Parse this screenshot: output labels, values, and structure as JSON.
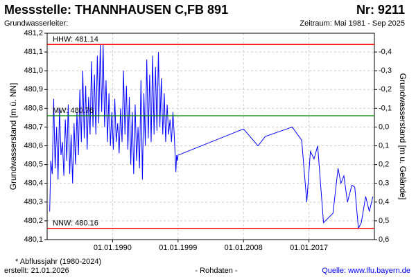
{
  "chart_data": {
    "type": "line",
    "title": "Messstelle: THANNHAUSEN C,FB 891",
    "number": "Nr: 9211",
    "subtitle_left": "Grundwasserleiter:",
    "subtitle_right": "Zeitraum: Mai 1981 - Sep 2025",
    "ylabel": "Grundwasserstand [m ü. NN]",
    "y2label": "Grundwasserstand [m u. Gelände]",
    "footnote": "* Abflussjahr (1980-2024)",
    "created": "erstellt:  21.01.2026",
    "rawdata": "- Rohdaten -",
    "source": "Quelle: www.lfu.bayern.de",
    "grid": true,
    "xlim": [
      1981,
      2026
    ],
    "xticks": [
      {
        "value": 1990,
        "label": "01.01.1990"
      },
      {
        "value": 1999,
        "label": "01.01.1999"
      },
      {
        "value": 2008,
        "label": "01.01.2008"
      },
      {
        "value": 2017,
        "label": "01.01.2017"
      }
    ],
    "ylim": [
      480.1,
      481.2
    ],
    "yticks": [
      {
        "value": 480.1,
        "label": "480,1"
      },
      {
        "value": 480.2,
        "label": "480,2"
      },
      {
        "value": 480.3,
        "label": "480,3"
      },
      {
        "value": 480.4,
        "label": "480,4"
      },
      {
        "value": 480.5,
        "label": "480,5"
      },
      {
        "value": 480.6,
        "label": "480,6"
      },
      {
        "value": 480.7,
        "label": "480,7"
      },
      {
        "value": 480.8,
        "label": "480,8"
      },
      {
        "value": 480.9,
        "label": "480,9"
      },
      {
        "value": 481.0,
        "label": "481,0"
      },
      {
        "value": 481.1,
        "label": "481,1"
      },
      {
        "value": 481.2,
        "label": "481,2"
      }
    ],
    "y2lim": [
      0.6,
      -0.5
    ],
    "y2ticks": [
      {
        "value": -0.4,
        "label": "-0,4"
      },
      {
        "value": -0.3,
        "label": "-0,3"
      },
      {
        "value": -0.2,
        "label": "-0,2"
      },
      {
        "value": -0.1,
        "label": "-0,1"
      },
      {
        "value": 0.0,
        "label": "0,0"
      },
      {
        "value": 0.1,
        "label": "0,1"
      },
      {
        "value": 0.2,
        "label": "0,2"
      },
      {
        "value": 0.3,
        "label": "0,3"
      },
      {
        "value": 0.4,
        "label": "0,4"
      },
      {
        "value": 0.5,
        "label": "0,5"
      },
      {
        "value": 0.6,
        "label": "0,6"
      }
    ],
    "reference_lines": [
      {
        "label": "HHW: 481.14",
        "value": 481.14,
        "color": "#ff0000"
      },
      {
        "label": "MW: 480.76",
        "value": 480.76,
        "color": "#008000"
      },
      {
        "label": "NNW: 480.16",
        "value": 480.16,
        "color": "#ff0000"
      }
    ],
    "series": [
      {
        "color": "#0000ff",
        "x": [
          1981.35,
          1981.5,
          1981.7,
          1981.9,
          1982.1,
          1982.3,
          1982.5,
          1982.7,
          1982.9,
          1983.1,
          1983.3,
          1983.5,
          1983.7,
          1983.9,
          1984.1,
          1984.3,
          1984.5,
          1984.7,
          1984.9,
          1985.1,
          1985.3,
          1985.5,
          1985.7,
          1985.9,
          1986.1,
          1986.3,
          1986.5,
          1986.7,
          1986.9,
          1987.1,
          1987.3,
          1987.5,
          1987.7,
          1987.9,
          1988.1,
          1988.3,
          1988.5,
          1988.7,
          1988.9,
          1989.1,
          1989.3,
          1989.5,
          1989.7,
          1989.9,
          1990.1,
          1990.3,
          1990.5,
          1990.7,
          1990.9,
          1991.1,
          1991.3,
          1991.5,
          1991.7,
          1991.9,
          1992.1,
          1992.3,
          1992.5,
          1992.7,
          1992.9,
          1993.1,
          1993.3,
          1993.5,
          1993.7,
          1993.9,
          1994.1,
          1994.3,
          1994.5,
          1994.7,
          1994.9,
          1995.1,
          1995.3,
          1995.5,
          1995.7,
          1995.9,
          1996.1,
          1996.3,
          1996.5,
          1996.7,
          1996.9,
          1997.1,
          1997.3,
          1997.5,
          1997.7,
          1997.9,
          1998.1,
          1998.3,
          1998.5,
          1998.7,
          1998.8,
          1998.9,
          1999.0,
          2008.0,
          2010.0,
          2011.0,
          2014.7,
          2016.0,
          2016.7,
          2017.2,
          2017.7,
          2018.2,
          2019.0,
          2020.3,
          2021.0,
          2021.4,
          2021.8,
          2022.3,
          2022.9,
          2023.3,
          2023.8,
          2024.2,
          2024.8,
          2025.3,
          2025.8
        ],
        "values": [
          480.25,
          480.52,
          480.45,
          480.85,
          480.48,
          480.7,
          480.42,
          480.8,
          480.55,
          480.62,
          480.44,
          480.74,
          480.52,
          480.82,
          480.45,
          480.66,
          480.4,
          480.72,
          480.5,
          480.78,
          480.55,
          480.9,
          480.62,
          481.0,
          480.64,
          480.92,
          480.58,
          480.86,
          480.66,
          481.05,
          480.7,
          480.98,
          480.66,
          481.08,
          480.72,
          481.14,
          480.78,
          481.14,
          480.7,
          480.95,
          480.62,
          480.88,
          480.6,
          480.78,
          480.58,
          480.85,
          480.62,
          480.72,
          480.56,
          480.8,
          480.62,
          481.0,
          480.66,
          480.92,
          480.58,
          480.86,
          480.5,
          480.78,
          480.45,
          480.82,
          480.52,
          480.7,
          480.48,
          480.95,
          480.42,
          480.88,
          480.6,
          481.06,
          480.64,
          480.98,
          480.62,
          481.08,
          480.66,
          481.02,
          480.68,
          481.1,
          480.7,
          480.96,
          480.66,
          480.88,
          480.62,
          480.82,
          480.66,
          480.74,
          480.62,
          480.78,
          480.64,
          480.46,
          480.55,
          480.52,
          480.55,
          480.69,
          480.6,
          480.65,
          480.7,
          480.63,
          480.3,
          480.57,
          480.53,
          480.6,
          480.19,
          480.24,
          480.48,
          480.4,
          480.44,
          480.3,
          480.39,
          480.38,
          480.16,
          480.19,
          480.33,
          480.25,
          480.33
        ]
      }
    ]
  }
}
